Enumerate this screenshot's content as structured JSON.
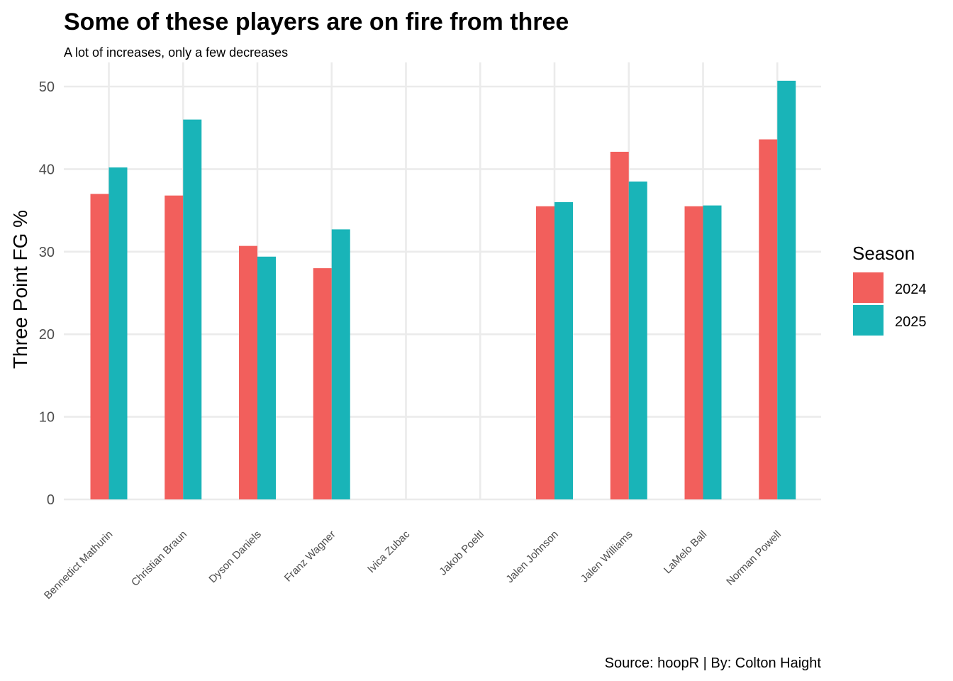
{
  "chart_data": {
    "type": "bar",
    "title": "Some of these players are on fire from three",
    "subtitle": "A lot of increases, only a few decreases",
    "xlabel": "",
    "ylabel": "Three Point FG %",
    "caption": "Source: hoopR | By: Colton Haight",
    "ylim": [
      0,
      52
    ],
    "yticks": [
      0,
      10,
      20,
      30,
      40,
      50
    ],
    "grid": true,
    "legend": {
      "title": "Season",
      "position": "right"
    },
    "categories": [
      "Bennedict Mathurin",
      "Christian Braun",
      "Dyson Daniels",
      "Franz Wagner",
      "Ivica Zubac",
      "Jakob Poeltl",
      "Jalen Johnson",
      "Jalen Williams",
      "LaMelo Ball",
      "Norman Powell"
    ],
    "series": [
      {
        "name": "2024",
        "color": "#F25F5C",
        "values": [
          37.0,
          36.8,
          30.7,
          28.0,
          null,
          null,
          35.5,
          42.1,
          35.5,
          43.6
        ]
      },
      {
        "name": "2025",
        "color": "#19B4B8",
        "values": [
          40.2,
          46.0,
          29.4,
          32.7,
          null,
          null,
          36.0,
          38.5,
          35.6,
          50.7
        ]
      }
    ]
  }
}
